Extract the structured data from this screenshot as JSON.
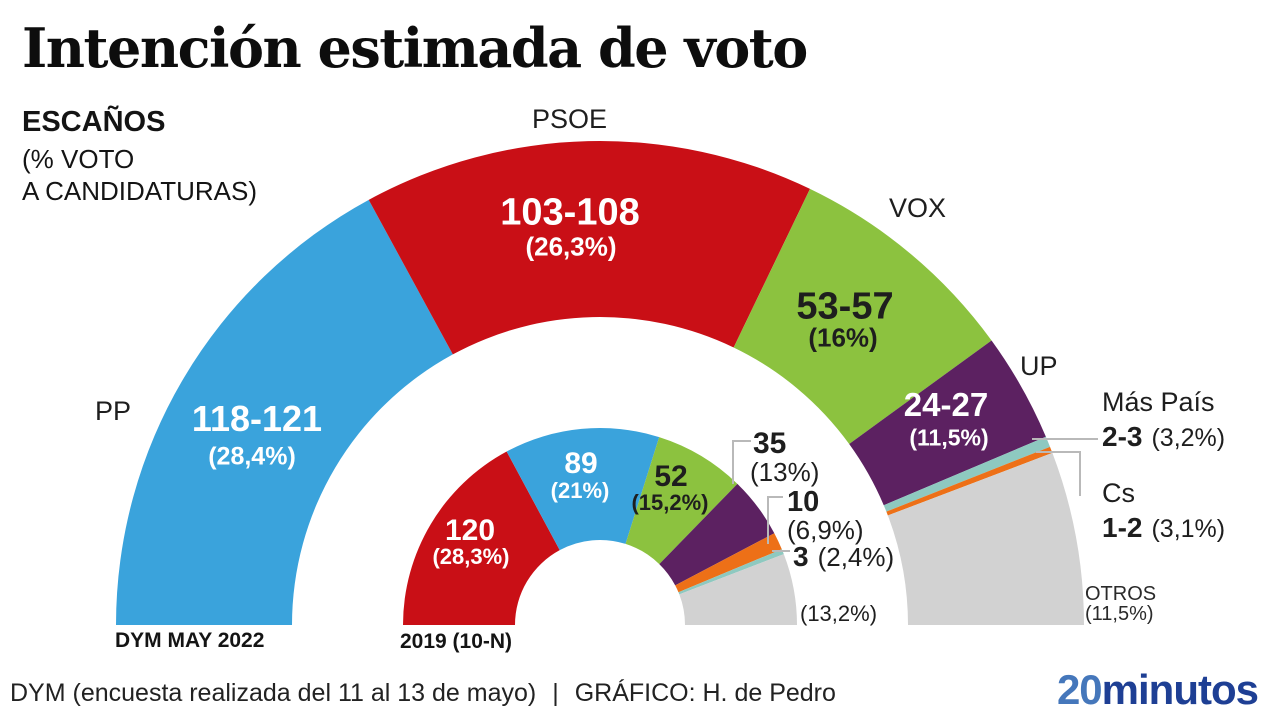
{
  "title": "Intención estimada de voto",
  "subtitle": {
    "heading": "ESCAÑOS",
    "line2": "(% VOTO",
    "line3": "A CANDIDATURAS)"
  },
  "footer": {
    "source": "DYM (encuesta realizada del 11 al 13 de mayo)",
    "separator": "|",
    "credit": "GRÁFICO: H. de Pedro"
  },
  "logo": {
    "part1": "20",
    "part2": "minutos",
    "color1": "#4577bb",
    "color2": "#1e3f94"
  },
  "chart_data": {
    "type": "pie",
    "subtype": "semicircle-donut",
    "total_seats_per_ring": 350,
    "legend_position": "around-arcs",
    "rings": [
      {
        "id": "dym-may-2022",
        "label": "DYM MAY 2022",
        "segments": [
          {
            "party": "PP",
            "seats": "118-121",
            "pct": "(28,4%)",
            "weight": 119.5,
            "color": "#3aa3dc",
            "text_color": "#ffffff"
          },
          {
            "party": "PSOE",
            "seats": "103-108",
            "pct": "(26,3%)",
            "weight": 105.5,
            "color": "#c90f16",
            "text_color": "#ffffff"
          },
          {
            "party": "VOX",
            "seats": "53-57",
            "pct": "(16%)",
            "weight": 55,
            "color": "#8cc23f",
            "text_color": "#1e1e1e"
          },
          {
            "party": "UP",
            "seats": "24-27",
            "pct": "(11,5%)",
            "weight": 25.5,
            "color": "#5c2161",
            "text_color": "#ffffff"
          },
          {
            "party": "Más País",
            "seats": "2-3",
            "pct": "(3,2%)",
            "weight": 2.5,
            "color": "#8ec9c0",
            "text_color": "#1e1e1e"
          },
          {
            "party": "Cs",
            "seats": "1-2",
            "pct": "(3,1%)",
            "weight": 1.5,
            "color": "#ed7017",
            "text_color": "#1e1e1e"
          },
          {
            "party": "OTROS",
            "seats": "",
            "pct": "(11,5%)",
            "weight": 40.5,
            "color": "#d2d2d2",
            "text_color": "#2a2a2a"
          }
        ]
      },
      {
        "id": "2019-10-n",
        "label": "2019 (10-N)",
        "segments": [
          {
            "party": "PSOE",
            "seats": "120",
            "pct": "(28,3%)",
            "weight": 120,
            "color": "#c90f16",
            "text_color": "#ffffff"
          },
          {
            "party": "PP",
            "seats": "89",
            "pct": "(21%)",
            "weight": 89,
            "color": "#3aa3dc",
            "text_color": "#ffffff"
          },
          {
            "party": "VOX",
            "seats": "52",
            "pct": "(15,2%)",
            "weight": 52,
            "color": "#8cc23f",
            "text_color": "#1e1e1e"
          },
          {
            "party": "UP",
            "seats": "35",
            "pct": "(13%)",
            "weight": 35,
            "color": "#5c2161",
            "text_color": "#1e1e1e"
          },
          {
            "party": "Cs",
            "seats": "10",
            "pct": "(6,9%)",
            "weight": 10,
            "color": "#ed7017",
            "text_color": "#1e1e1e"
          },
          {
            "party": "Más País",
            "seats": "3",
            "pct": "(2,4%)",
            "weight": 3,
            "color": "#8ec9c0",
            "text_color": "#1e1e1e"
          },
          {
            "party": "OTROS",
            "seats": "",
            "pct": "(13,2%)",
            "weight": 41,
            "color": "#d2d2d2",
            "text_color": "#2a2a2a"
          }
        ]
      }
    ]
  }
}
